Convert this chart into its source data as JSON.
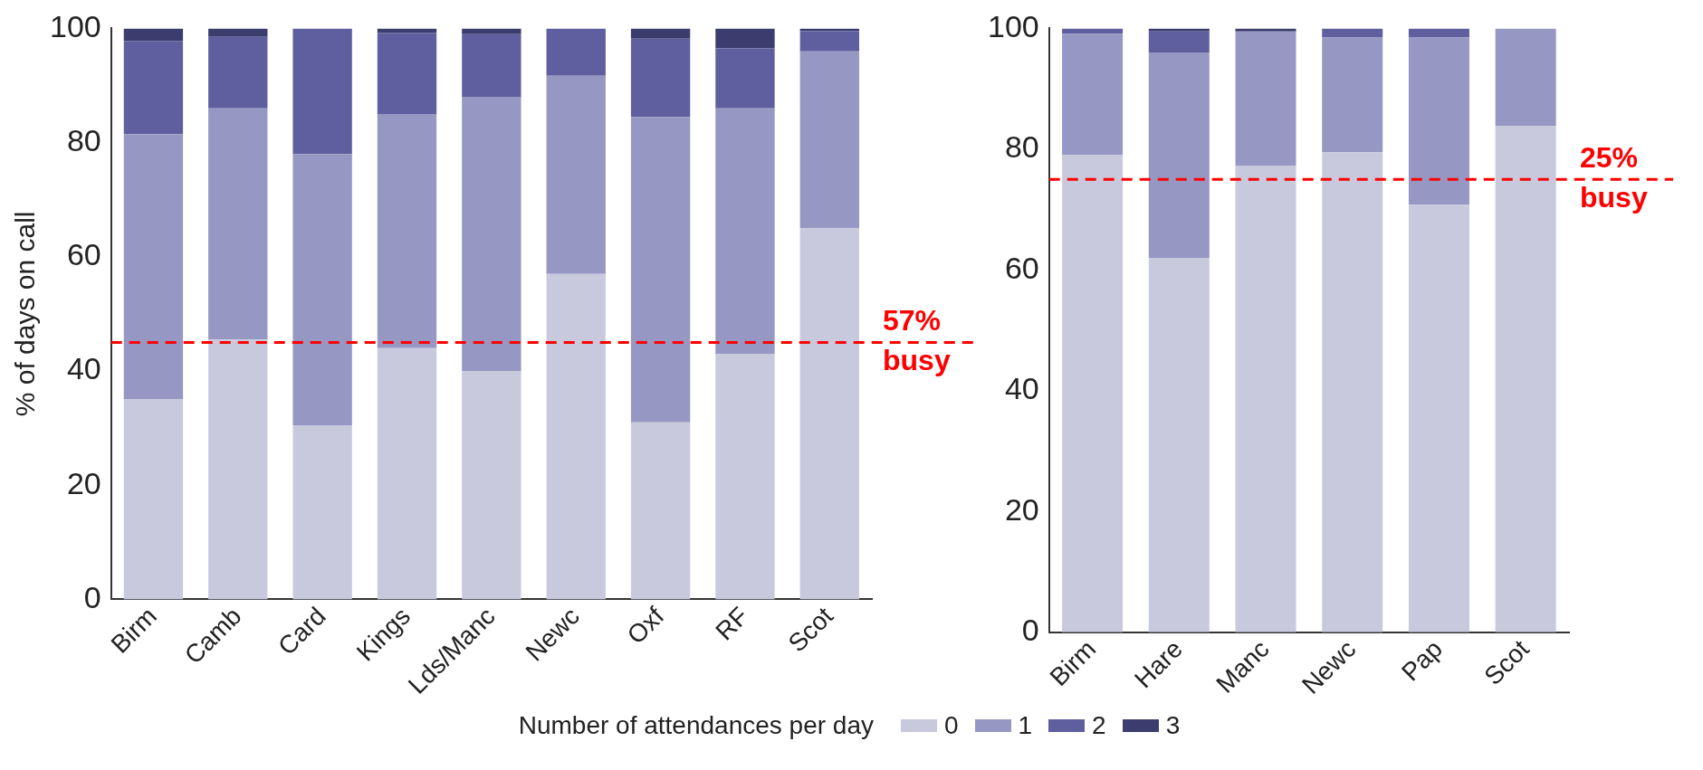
{
  "chart_data": [
    {
      "type": "bar",
      "stacked": true,
      "ylabel": "% of days on call",
      "legend": "bottom",
      "legend_title": "Number of attendances per day",
      "categories": [
        "Birm",
        "Camb",
        "Card",
        "Kings",
        "Lds/Manc",
        "Newc",
        "Oxf",
        "RF",
        "Scot"
      ],
      "series": [
        {
          "name": "0",
          "color": "#c8c9dd",
          "values": [
            35,
            45.5,
            30.5,
            44,
            40,
            57,
            31,
            43,
            65
          ]
        },
        {
          "name": "1",
          "color": "#9697c2",
          "values": [
            46.5,
            40.5,
            47.5,
            41,
            48,
            34.7,
            53.5,
            43,
            31
          ]
        },
        {
          "name": "2",
          "color": "#5f5f9f",
          "values": [
            16.3,
            12.5,
            22,
            14.2,
            11,
            8.3,
            13.7,
            10.5,
            3.5
          ]
        },
        {
          "name": "3",
          "color": "#3c3c6e",
          "values": [
            2.2,
            1.5,
            0,
            0.8,
            1,
            0,
            1.8,
            3.5,
            0.5
          ]
        }
      ],
      "ylim": [
        0,
        100
      ],
      "yticks": [
        0,
        20,
        40,
        60,
        80,
        100
      ],
      "grid": false,
      "ref_lines": [
        {
          "axis": "y",
          "value": 45,
          "label": "57%\nbusy",
          "color": "#ff0000",
          "line_style": "dashed"
        }
      ]
    },
    {
      "type": "bar",
      "stacked": true,
      "categories": [
        "Birm",
        "Hare",
        "Manc",
        "Newc",
        "Pap",
        "Scot"
      ],
      "series": [
        {
          "color": "#c8c9dd",
          "values": [
            79,
            62,
            77.2,
            79.5,
            70.8,
            83.8
          ]
        },
        {
          "color": "#9697c2",
          "values": [
            20.1,
            34,
            22.3,
            19,
            27.7,
            16.2
          ]
        },
        {
          "color": "#5f5f9f",
          "values": [
            0.9,
            3.5,
            0,
            1.5,
            1.5,
            0
          ]
        },
        {
          "color": "#3c3c6e",
          "values": [
            0,
            0.5,
            0.5,
            0,
            0,
            0
          ]
        }
      ],
      "ylim": [
        0,
        100
      ],
      "yticks": [
        0,
        20,
        40,
        60,
        80,
        100
      ],
      "grid": false,
      "ref_lines": [
        {
          "axis": "y",
          "value": 75,
          "label": "25%\nbusy",
          "color": "#ff0000",
          "line_style": "dashed"
        }
      ]
    }
  ]
}
